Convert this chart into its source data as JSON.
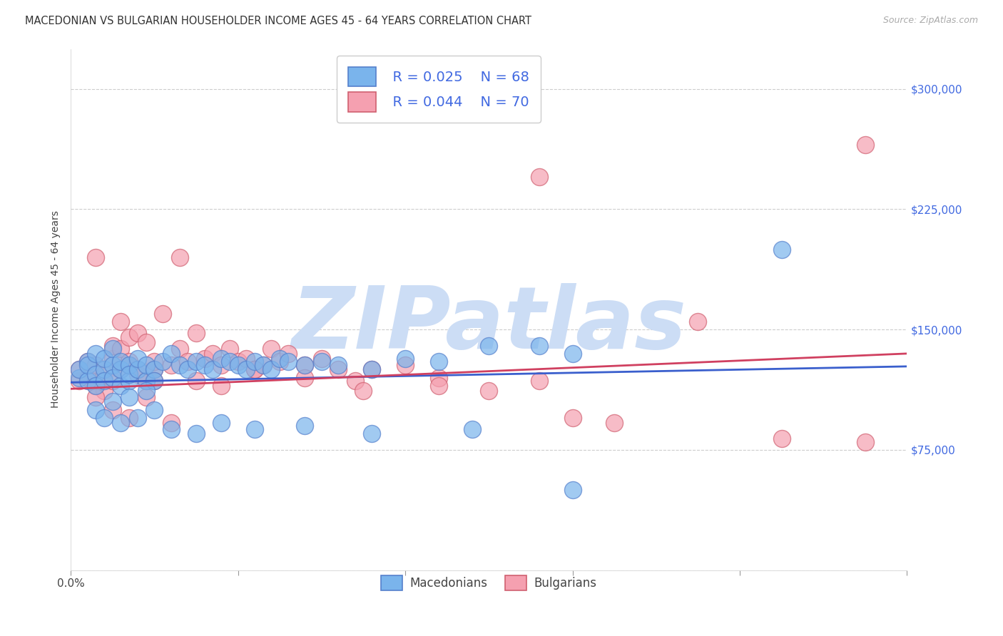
{
  "title": "MACEDONIAN VS BULGARIAN HOUSEHOLDER INCOME AGES 45 - 64 YEARS CORRELATION CHART",
  "source": "Source: ZipAtlas.com",
  "ylabel": "Householder Income Ages 45 - 64 years",
  "xlim": [
    0.0,
    0.1
  ],
  "ylim": [
    0,
    325000
  ],
  "xticks": [
    0.0,
    0.02,
    0.04,
    0.06,
    0.08,
    0.1
  ],
  "xticklabels_shown": {
    "0.0": "0.0%"
  },
  "yticks": [
    0,
    75000,
    150000,
    225000,
    300000
  ],
  "yticklabels": [
    "",
    "$75,000",
    "$150,000",
    "$225,000",
    "$300,000"
  ],
  "legend_labels": [
    "Macedonians",
    "Bulgarians"
  ],
  "legend_R": [
    "R = 0.025",
    "R = 0.044"
  ],
  "legend_N": [
    "N = 68",
    "N = 70"
  ],
  "mac_color": "#7ab4ec",
  "bul_color": "#f5a0b0",
  "mac_edge_color": "#5580cc",
  "bul_edge_color": "#d06070",
  "mac_line_color": "#3a5fcd",
  "bul_line_color": "#d04060",
  "legend_text_color": "#4169e1",
  "ytick_color": "#4169e1",
  "watermark": "ZIPatlas",
  "watermark_color": "#ccddf5",
  "title_fontsize": 10.5,
  "axis_label_fontsize": 10,
  "tick_fontsize": 10,
  "mac_trend_x0": 0.0,
  "mac_trend_y0": 117000,
  "mac_trend_x1": 0.1,
  "mac_trend_y1": 127000,
  "bul_trend_x0": 0.0,
  "bul_trend_y0": 113000,
  "bul_trend_x1": 0.1,
  "bul_trend_y1": 135000,
  "mac_x": [
    0.001,
    0.001,
    0.002,
    0.002,
    0.002,
    0.003,
    0.003,
    0.003,
    0.004,
    0.004,
    0.004,
    0.005,
    0.005,
    0.005,
    0.006,
    0.006,
    0.006,
    0.007,
    0.007,
    0.007,
    0.008,
    0.008,
    0.009,
    0.009,
    0.01,
    0.01,
    0.011,
    0.012,
    0.013,
    0.014,
    0.015,
    0.016,
    0.017,
    0.018,
    0.019,
    0.02,
    0.021,
    0.022,
    0.023,
    0.024,
    0.025,
    0.026,
    0.028,
    0.03,
    0.032,
    0.036,
    0.04,
    0.044,
    0.05,
    0.056,
    0.06,
    0.085,
    0.003,
    0.004,
    0.005,
    0.006,
    0.007,
    0.008,
    0.009,
    0.01,
    0.012,
    0.015,
    0.018,
    0.022,
    0.028,
    0.036,
    0.048,
    0.06
  ],
  "mac_y": [
    120000,
    125000,
    130000,
    118000,
    128000,
    122000,
    135000,
    115000,
    125000,
    132000,
    118000,
    128000,
    120000,
    138000,
    115000,
    125000,
    130000,
    118000,
    128000,
    122000,
    125000,
    132000,
    118000,
    128000,
    125000,
    118000,
    130000,
    135000,
    128000,
    125000,
    130000,
    128000,
    125000,
    132000,
    130000,
    128000,
    125000,
    130000,
    128000,
    125000,
    132000,
    130000,
    128000,
    130000,
    128000,
    125000,
    132000,
    130000,
    140000,
    140000,
    135000,
    200000,
    100000,
    95000,
    105000,
    92000,
    108000,
    95000,
    112000,
    100000,
    88000,
    85000,
    92000,
    88000,
    90000,
    85000,
    88000,
    50000
  ],
  "bul_x": [
    0.001,
    0.001,
    0.002,
    0.002,
    0.003,
    0.003,
    0.003,
    0.004,
    0.004,
    0.005,
    0.005,
    0.005,
    0.006,
    0.006,
    0.006,
    0.007,
    0.007,
    0.007,
    0.008,
    0.008,
    0.008,
    0.009,
    0.009,
    0.01,
    0.01,
    0.01,
    0.011,
    0.012,
    0.013,
    0.013,
    0.014,
    0.015,
    0.016,
    0.017,
    0.018,
    0.019,
    0.02,
    0.021,
    0.022,
    0.023,
    0.024,
    0.025,
    0.026,
    0.028,
    0.03,
    0.032,
    0.034,
    0.036,
    0.04,
    0.044,
    0.05,
    0.056,
    0.06,
    0.065,
    0.085,
    0.095,
    0.003,
    0.005,
    0.007,
    0.009,
    0.012,
    0.015,
    0.018,
    0.022,
    0.028,
    0.035,
    0.044,
    0.056,
    0.075,
    0.095
  ],
  "bul_y": [
    118000,
    125000,
    120000,
    130000,
    115000,
    128000,
    195000,
    112000,
    122000,
    118000,
    132000,
    140000,
    125000,
    138000,
    155000,
    128000,
    145000,
    130000,
    122000,
    148000,
    125000,
    118000,
    142000,
    125000,
    130000,
    118000,
    160000,
    128000,
    195000,
    138000,
    130000,
    148000,
    132000,
    135000,
    128000,
    138000,
    130000,
    132000,
    125000,
    128000,
    138000,
    130000,
    135000,
    128000,
    132000,
    125000,
    118000,
    125000,
    128000,
    120000,
    112000,
    118000,
    95000,
    92000,
    82000,
    80000,
    108000,
    100000,
    95000,
    108000,
    92000,
    118000,
    115000,
    125000,
    120000,
    112000,
    115000,
    245000,
    155000,
    265000
  ]
}
